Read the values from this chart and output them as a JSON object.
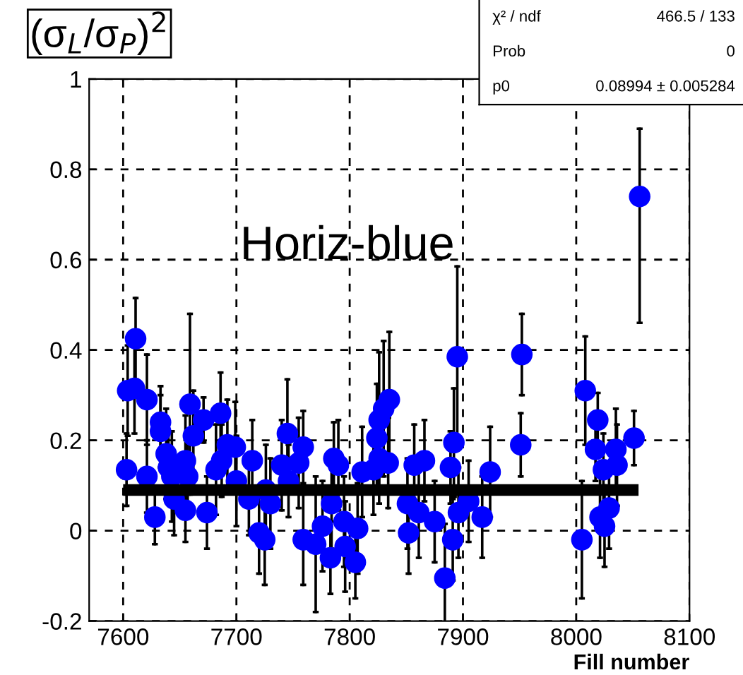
{
  "chart_data": {
    "type": "scatter",
    "xlabel": "Fill number",
    "ylabel": "(σ$_{L}$/σ$_{P}$)$^{2}$",
    "annotations": [
      "Horiz-blue",
      "χ² / ndf",
      "466.5 / 133",
      "Prob",
      "0",
      "p0",
      "0.08994 ± 0.005284"
    ],
    "xlim": [
      7570,
      8100
    ],
    "xticks": [
      7600,
      7700,
      7800,
      7900,
      8000,
      8100
    ],
    "ylim": [
      -0.2,
      1
    ],
    "yticks": [
      -0.2,
      0,
      0.2,
      0.4,
      0.6,
      0.8,
      1
    ],
    "grid": true,
    "series": [
      {
        "color": "#0000ff",
        "marker": "circle",
        "x": [
          7603,
          7604,
          7610,
          7611,
          7621,
          7621,
          7628,
          7633,
          7633,
          7638,
          7640,
          7643,
          7645,
          7655,
          7655,
          7657,
          7659,
          7662,
          7671,
          7674,
          7682,
          7686,
          7687,
          7692,
          7699,
          7700,
          7711,
          7714,
          7720,
          7725,
          7726,
          7730,
          7740,
          7745,
          7746,
          7755,
          7759,
          7759,
          7770,
          7776,
          7783,
          7784,
          7786,
          7790,
          7795,
          7796,
          7805,
          7807,
          7811,
          7821,
          7824,
          7826,
          7826,
          7830,
          7834,
          7835,
          7851,
          7852,
          7857,
          7861,
          7866,
          7875,
          7884,
          7889,
          7891,
          7892,
          7895,
          7896,
          7905,
          7917,
          7924,
          7951,
          7952,
          8005,
          8008,
          8017,
          8019,
          8021,
          8024,
          8025,
          8029,
          8035,
          8036,
          8051,
          8056
        ],
        "values": [
          0.135,
          0.31,
          0.315,
          0.425,
          0.29,
          0.12,
          0.03,
          0.24,
          0.22,
          0.17,
          0.14,
          0.12,
          0.07,
          0.155,
          0.045,
          0.12,
          0.28,
          0.21,
          0.245,
          0.04,
          0.135,
          0.26,
          0.155,
          0.19,
          0.185,
          0.11,
          0.07,
          0.155,
          -0.005,
          -0.02,
          0.09,
          0.06,
          0.145,
          0.215,
          0.11,
          0.15,
          0.185,
          -0.02,
          -0.03,
          0.01,
          -0.06,
          0.06,
          0.16,
          0.145,
          0.02,
          -0.035,
          -0.07,
          0.005,
          0.13,
          0.135,
          0.205,
          0.245,
          0.16,
          0.27,
          0.15,
          0.29,
          0.06,
          -0.005,
          0.145,
          0.04,
          0.155,
          0.02,
          -0.105,
          0.14,
          -0.02,
          0.195,
          0.385,
          0.04,
          0.065,
          0.03,
          0.13,
          0.19,
          0.39,
          -0.02,
          0.31,
          0.18,
          0.245,
          0.03,
          0.135,
          0.01,
          0.05,
          0.18,
          0.145,
          0.205,
          0.74
        ],
        "errors": [
          0.08,
          0.1,
          0.1,
          0.09,
          0.1,
          0.08,
          0.06,
          0.08,
          0.08,
          0.1,
          0.08,
          0.1,
          0.08,
          0.1,
          0.07,
          0.08,
          0.2,
          0.1,
          0.05,
          0.08,
          0.1,
          0.09,
          0.08,
          0.1,
          0.1,
          0.1,
          0.08,
          0.09,
          0.09,
          0.1,
          0.1,
          0.1,
          0.1,
          0.12,
          0.08,
          0.1,
          0.08,
          0.1,
          0.15,
          0.1,
          0.08,
          0.1,
          0.08,
          0.1,
          0.1,
          0.1,
          0.08,
          0.1,
          0.1,
          0.1,
          0.12,
          0.15,
          0.1,
          0.15,
          0.1,
          0.15,
          0.1,
          0.09,
          0.09,
          0.1,
          0.09,
          0.09,
          0.12,
          0.08,
          0.09,
          0.12,
          0.2,
          0.1,
          0.09,
          0.09,
          0.1,
          0.07,
          0.09,
          0.13,
          0.12,
          0.07,
          0.06,
          0.09,
          0.08,
          0.09,
          0.09,
          0.09,
          0.09,
          0.06,
          [
            0.46,
            0.89
          ]
        ]
      },
      {
        "type": "line",
        "color": "#000000",
        "x": [
          7600,
          8055
        ],
        "values": [
          0.09,
          0.09
        ]
      }
    ]
  }
}
